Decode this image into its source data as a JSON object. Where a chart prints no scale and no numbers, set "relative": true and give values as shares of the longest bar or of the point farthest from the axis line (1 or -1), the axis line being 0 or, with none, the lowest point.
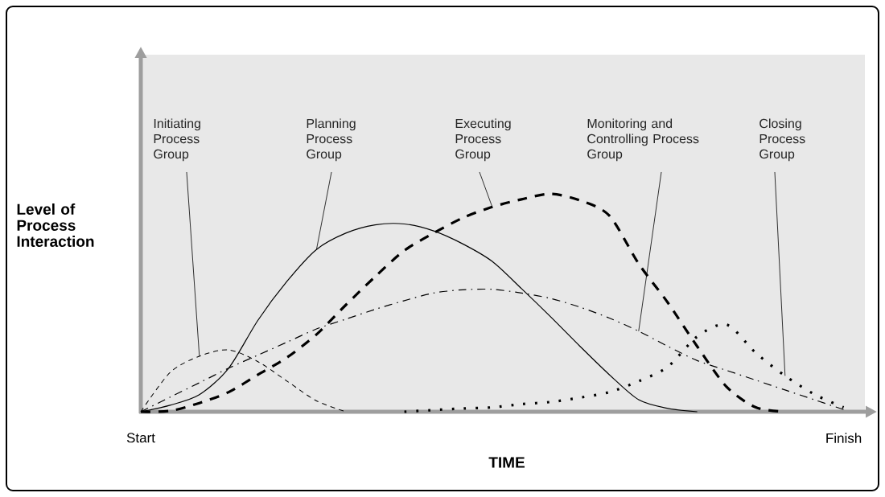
{
  "chart_data": {
    "type": "line",
    "relative": true,
    "xlabel": "TIME",
    "ylabel": "Level of Process Interaction",
    "categories": [
      "Start",
      null,
      null,
      null,
      null,
      null,
      null,
      null,
      null,
      null,
      null,
      null,
      null,
      null,
      null,
      null,
      null,
      null,
      null,
      null,
      null,
      null,
      null,
      null,
      "Finish",
      null
    ],
    "legend": false,
    "grid": false,
    "marker": "none",
    "series": [
      {
        "name": "Initiating Process Group",
        "color": "#000000",
        "line_style": "fine dashed",
        "values": [
          0,
          0.18,
          0.255,
          0.284,
          0.23,
          0.14,
          0.05,
          0,
          null,
          null,
          null,
          null,
          null,
          null,
          null,
          null,
          null,
          null,
          null,
          null,
          null,
          null,
          null,
          null,
          null,
          null
        ]
      },
      {
        "name": "Planning Process Group",
        "color": "#000000",
        "line_style": "solid",
        "values": [
          0,
          0.03,
          0.078,
          0.2,
          0.42,
          0.6,
          0.745,
          0.82,
          0.858,
          0.862,
          0.83,
          0.77,
          0.69,
          0.565,
          0.435,
          0.3,
          0.17,
          0.055,
          0.015,
          0,
          null,
          null,
          null,
          null,
          null,
          null
        ]
      },
      {
        "name": "Executing Process Group",
        "color": "#000000",
        "line_style": "dashed",
        "values": [
          0,
          0.004,
          0.04,
          0.09,
          0.17,
          0.25,
          0.355,
          0.49,
          0.62,
          0.74,
          0.82,
          0.89,
          0.94,
          0.975,
          1,
          0.97,
          0.9,
          0.68,
          0.5,
          0.3,
          0.115,
          0.02,
          0,
          null,
          null,
          null
        ]
      },
      {
        "name": "Monitoring and Controlling Process Group",
        "color": "#000000",
        "line_style": "dashdot",
        "values": [
          0,
          0.067,
          0.133,
          0.2,
          0.26,
          0.32,
          0.38,
          0.425,
          0.47,
          0.51,
          0.545,
          0.56,
          0.562,
          0.545,
          0.52,
          0.48,
          0.43,
          0.37,
          0.3,
          0.235,
          0.19,
          0.145,
          0.1,
          0.055,
          0.01,
          null
        ]
      },
      {
        "name": "Closing Process Group",
        "color": "#000000",
        "line_style": "dotted",
        "values": [
          null,
          null,
          null,
          null,
          null,
          null,
          null,
          null,
          null,
          0,
          0.008,
          0.015,
          0.02,
          0.035,
          0.045,
          0.065,
          0.09,
          0.14,
          0.207,
          0.345,
          0.4,
          0.27,
          0.165,
          0.08,
          0.02,
          null
        ]
      }
    ]
  }
}
